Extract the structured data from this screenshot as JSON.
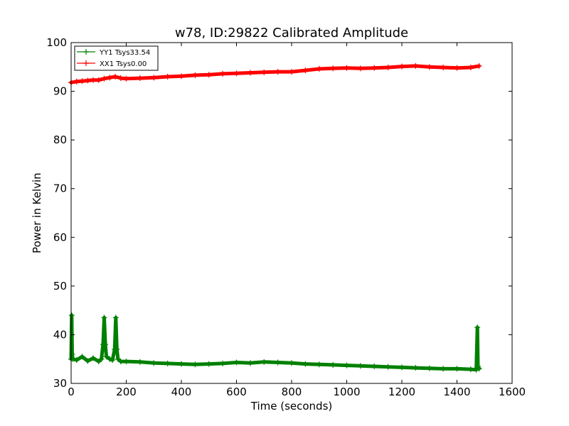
{
  "chart_data": {
    "type": "line",
    "title": "w78, ID:29822 Calibrated Amplitude",
    "xlabel": "Time (seconds)",
    "ylabel": "Power in Kelvin",
    "xlim": [
      0,
      1600
    ],
    "ylim": [
      30,
      100
    ],
    "xticks": [
      0,
      200,
      400,
      600,
      800,
      1000,
      1200,
      1400,
      1600
    ],
    "yticks": [
      30,
      40,
      50,
      60,
      70,
      80,
      90,
      100
    ],
    "grid": false,
    "legend_position": "top-left",
    "series": [
      {
        "name": "YY1 Tsys33.54",
        "color": "#008000",
        "marker": "plus",
        "x": [
          0,
          2,
          4,
          6,
          20,
          40,
          60,
          80,
          100,
          110,
          116,
          120,
          124,
          128,
          140,
          150,
          158,
          162,
          166,
          170,
          180,
          200,
          250,
          300,
          350,
          400,
          450,
          500,
          550,
          600,
          650,
          700,
          750,
          800,
          850,
          900,
          950,
          1000,
          1050,
          1100,
          1150,
          1200,
          1250,
          1300,
          1350,
          1400,
          1450,
          1470,
          1474,
          1476,
          1478,
          1480
        ],
        "y": [
          35,
          44,
          36,
          35,
          34.8,
          35.5,
          34.6,
          35.2,
          34.5,
          35,
          38,
          43.5,
          38,
          35.5,
          35,
          34.8,
          37,
          43.5,
          37,
          35,
          34.5,
          34.5,
          34.4,
          34.2,
          34.1,
          34.0,
          33.9,
          34.0,
          34.1,
          34.3,
          34.2,
          34.4,
          34.3,
          34.2,
          34.0,
          33.9,
          33.8,
          33.7,
          33.6,
          33.5,
          33.4,
          33.3,
          33.2,
          33.1,
          33.0,
          33.0,
          32.9,
          32.8,
          41.5,
          33.5,
          33.2,
          33.0
        ]
      },
      {
        "name": "XX1 Tsys0.00",
        "color": "#ff0000",
        "marker": "plus",
        "x": [
          0,
          20,
          40,
          60,
          80,
          100,
          120,
          140,
          160,
          180,
          200,
          250,
          300,
          350,
          400,
          450,
          500,
          550,
          600,
          650,
          700,
          750,
          800,
          850,
          900,
          950,
          1000,
          1050,
          1100,
          1150,
          1200,
          1250,
          1300,
          1350,
          1400,
          1450,
          1480
        ],
        "y": [
          91.8,
          92.0,
          92.1,
          92.2,
          92.3,
          92.3,
          92.6,
          92.8,
          93.0,
          92.7,
          92.6,
          92.7,
          92.8,
          93.0,
          93.1,
          93.3,
          93.4,
          93.6,
          93.7,
          93.8,
          93.9,
          94.0,
          94.0,
          94.3,
          94.6,
          94.7,
          94.8,
          94.7,
          94.8,
          94.9,
          95.1,
          95.2,
          95.0,
          94.9,
          94.8,
          94.9,
          95.2
        ]
      }
    ]
  }
}
